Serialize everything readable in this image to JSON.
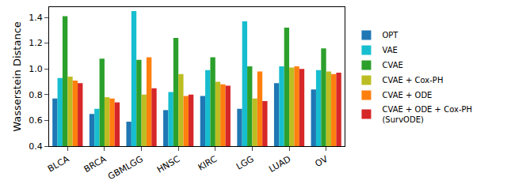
{
  "chart_data": {
    "type": "bar",
    "y_label": "Wasserstein Distance",
    "categories": [
      "BLCA",
      "BRCA",
      "GBMLGG",
      "HNSC",
      "KIRC",
      "LGG",
      "LUAD",
      "OV"
    ],
    "series": [
      {
        "name": "OPT",
        "color": "#1f77b4",
        "values": [
          0.77,
          0.65,
          0.59,
          0.68,
          0.79,
          0.69,
          0.89,
          0.84
        ]
      },
      {
        "name": "VAE",
        "color": "#17becf",
        "values": [
          0.93,
          0.69,
          1.45,
          0.82,
          0.99,
          1.37,
          1.02,
          0.99
        ]
      },
      {
        "name": "CVAE",
        "color": "#2ca02c",
        "values": [
          1.41,
          1.08,
          1.07,
          1.24,
          1.09,
          1.02,
          1.32,
          1.16
        ]
      },
      {
        "name": "CVAE + Cox-PH",
        "color": "#bcbd22",
        "values": [
          0.94,
          0.78,
          0.8,
          0.96,
          0.9,
          0.77,
          1.01,
          0.98
        ]
      },
      {
        "name": "CVAE + ODE",
        "color": "#ff7f0e",
        "values": [
          0.91,
          0.77,
          1.09,
          0.79,
          0.88,
          0.98,
          1.02,
          0.96
        ]
      },
      {
        "name": "CVAE + ODE + Cox-PH\n(SurvODE)",
        "color": "#d62728",
        "values": [
          0.89,
          0.74,
          0.85,
          0.8,
          0.87,
          0.75,
          1.0,
          0.97
        ]
      }
    ],
    "ylim": [
      0.4,
      1.48
    ],
    "yticks": [
      0.4,
      0.6,
      0.8,
      {
        "value": 1,
        "label": "1.0"
      },
      1.2,
      1.4
    ],
    "grid": false,
    "legend": "right"
  }
}
